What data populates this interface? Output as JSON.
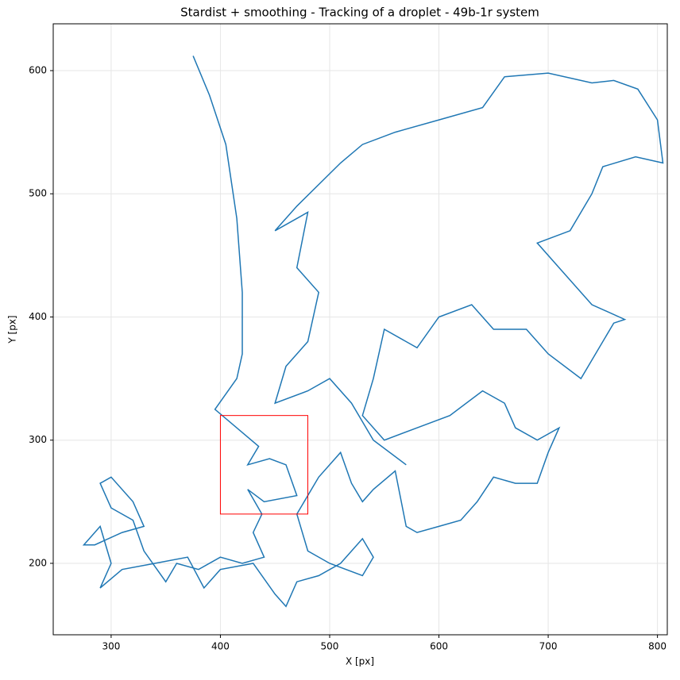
{
  "chart_data": {
    "type": "line",
    "title": "Stardist + smoothing - Tracking of a droplet - 49b-1r system",
    "x_label": "X [px]",
    "y_label": "Y [px]",
    "xlim": [
      247,
      809
    ],
    "ylim": [
      142,
      638
    ],
    "xticks": [
      300,
      400,
      500,
      600,
      700,
      800
    ],
    "yticks": [
      200,
      300,
      400,
      500,
      600
    ],
    "grid": true,
    "series": [
      {
        "color": "#1f77b4",
        "x": [
          375,
          390,
          405,
          415,
          420,
          420,
          415,
          395,
          435,
          425,
          445,
          460,
          470,
          440,
          425,
          438,
          430,
          440,
          420,
          400,
          380,
          360,
          350,
          330,
          320,
          300,
          290,
          300,
          320,
          330,
          310,
          285,
          275,
          290,
          300,
          290,
          310,
          340,
          370,
          385,
          400,
          430,
          450,
          460,
          470,
          490,
          510,
          530,
          540,
          530,
          500,
          480,
          470,
          490,
          510,
          520,
          530,
          540,
          560,
          570,
          580,
          600,
          620,
          635,
          650,
          670,
          690,
          700,
          710,
          690,
          670,
          660,
          640,
          610,
          580,
          550,
          530,
          540,
          550,
          580,
          600,
          630,
          650,
          680,
          700,
          730,
          760,
          770,
          740,
          710,
          690,
          720,
          740,
          750,
          780,
          805,
          800,
          782,
          760,
          740,
          700,
          660,
          640,
          600,
          560,
          530,
          510,
          470,
          450,
          480,
          470,
          490,
          480,
          460,
          450,
          480,
          500,
          520,
          540,
          570
        ],
        "y": [
          612,
          580,
          540,
          480,
          420,
          370,
          350,
          325,
          295,
          280,
          285,
          280,
          255,
          250,
          260,
          240,
          225,
          205,
          200,
          205,
          195,
          200,
          185,
          210,
          235,
          245,
          265,
          270,
          250,
          230,
          225,
          215,
          215,
          230,
          200,
          180,
          195,
          200,
          205,
          180,
          195,
          200,
          175,
          165,
          185,
          190,
          200,
          220,
          205,
          190,
          200,
          210,
          240,
          270,
          290,
          265,
          250,
          260,
          275,
          230,
          225,
          230,
          235,
          250,
          270,
          265,
          265,
          290,
          310,
          300,
          310,
          330,
          340,
          320,
          310,
          300,
          320,
          350,
          390,
          375,
          400,
          410,
          390,
          390,
          370,
          350,
          395,
          398,
          410,
          440,
          460,
          470,
          500,
          522,
          530,
          525,
          560,
          585,
          592,
          590,
          598,
          595,
          570,
          560,
          550,
          540,
          525,
          490,
          470,
          485,
          440,
          420,
          380,
          360,
          330,
          340,
          350,
          330,
          300,
          280
        ]
      }
    ],
    "rectangle": {
      "x": [
        400,
        480
      ],
      "y": [
        240,
        320
      ],
      "color": "#ff0000"
    }
  }
}
